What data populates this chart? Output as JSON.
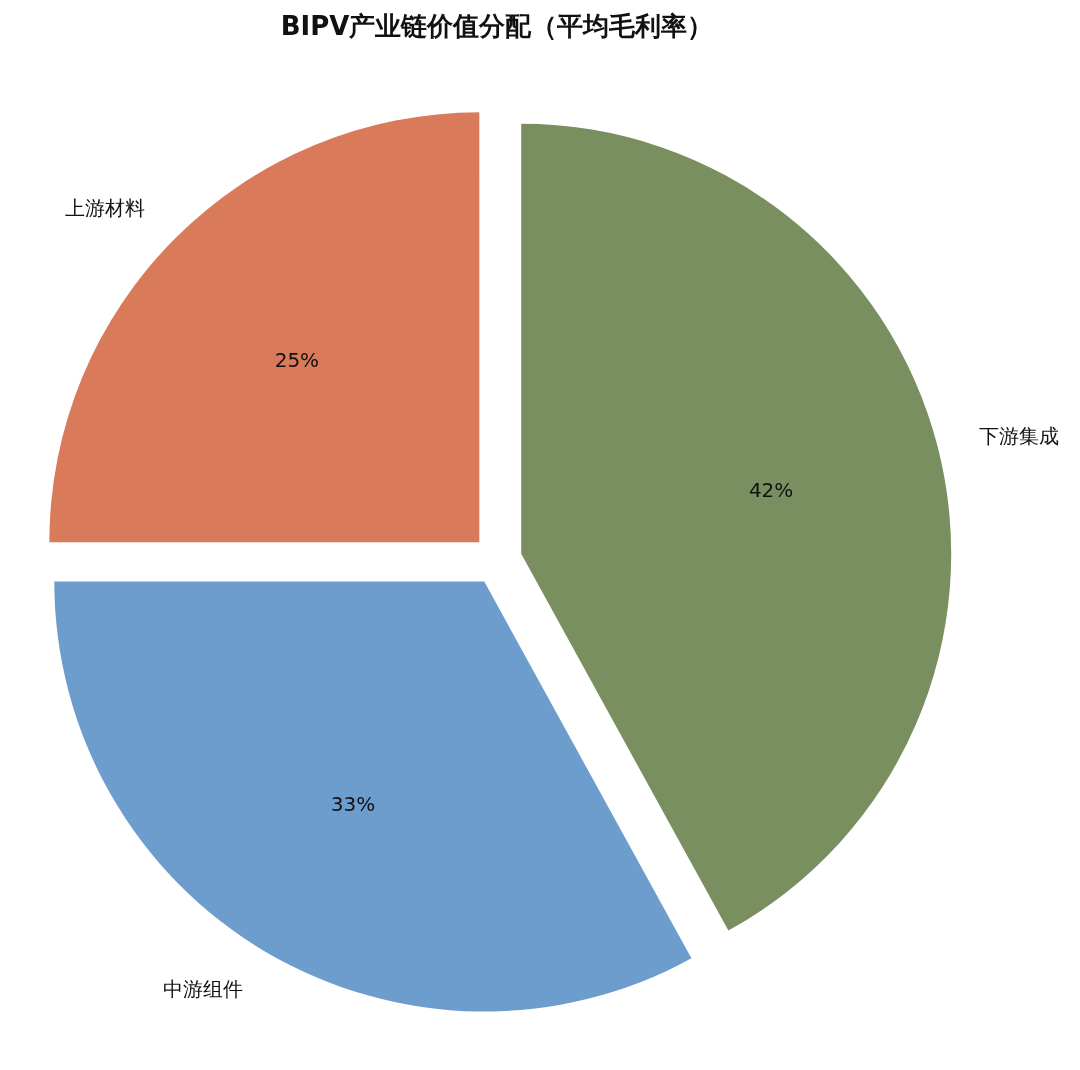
{
  "chart_data": {
    "type": "pie",
    "title": "BIPV产业链价值分配（平均毛利率）",
    "categories": [
      "上游材料",
      "中游组件",
      "下游集成"
    ],
    "values": [
      25,
      33,
      42
    ],
    "value_labels": [
      "25%",
      "33%",
      "42%"
    ],
    "colors": [
      "#d97a5a",
      "#6d9dcc",
      "#7a8f5f"
    ]
  }
}
